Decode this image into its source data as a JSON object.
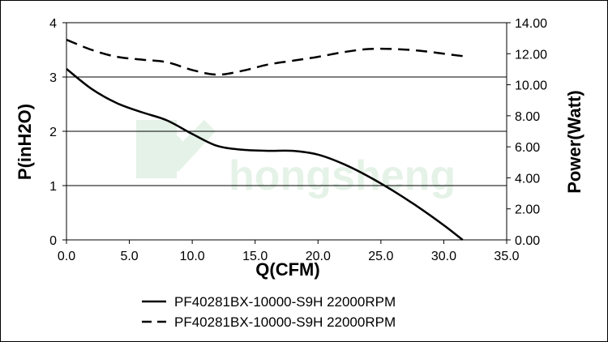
{
  "chart_data": {
    "type": "line",
    "xlabel": "Q(CFM)",
    "ylabel_left": "P(inH2O)",
    "ylabel_right": "Power(Watt)",
    "xlim": [
      0,
      35
    ],
    "ylim_left": [
      0,
      4
    ],
    "ylim_right": [
      0,
      14
    ],
    "x_ticks": [
      "0.0",
      "5.0",
      "10.0",
      "15.0",
      "20.0",
      "25.0",
      "30.0",
      "35.0"
    ],
    "y_left_ticks": [
      "0",
      "1",
      "2",
      "3",
      "4"
    ],
    "y_right_ticks": [
      "0.00",
      "2.00",
      "4.00",
      "6.00",
      "8.00",
      "10.00",
      "12.00",
      "14.00"
    ],
    "grid": "horizontal",
    "series": [
      {
        "name": "PF40281BX-10000-S9H 22000RPM",
        "axis": "left",
        "style": "solid",
        "color": "#000000",
        "x": [
          0,
          2,
          4,
          6,
          8,
          10,
          12,
          14,
          16,
          18,
          20,
          22,
          24,
          26,
          28,
          30,
          31.5
        ],
        "y": [
          3.15,
          2.78,
          2.52,
          2.35,
          2.2,
          1.95,
          1.73,
          1.66,
          1.64,
          1.64,
          1.57,
          1.4,
          1.17,
          0.9,
          0.6,
          0.27,
          0
        ]
      },
      {
        "name": "PF40281BX-10000-S9H 22000RPM",
        "axis": "right",
        "style": "dashed",
        "color": "#000000",
        "x": [
          0,
          2,
          4,
          6,
          8,
          10,
          12,
          14,
          16,
          18,
          20,
          22,
          24,
          26,
          28,
          30,
          31.5
        ],
        "y": [
          12.9,
          12.25,
          11.8,
          11.62,
          11.45,
          10.95,
          10.65,
          10.9,
          11.3,
          11.55,
          11.8,
          12.1,
          12.3,
          12.3,
          12.2,
          12.0,
          11.85
        ]
      }
    ],
    "legend": {
      "placement": "bottom-center",
      "entries": [
        "PF40281BX-10000-S9H 22000RPM",
        "PF40281BX-10000-S9H 22000RPM"
      ]
    },
    "watermark": "hongsheng"
  }
}
